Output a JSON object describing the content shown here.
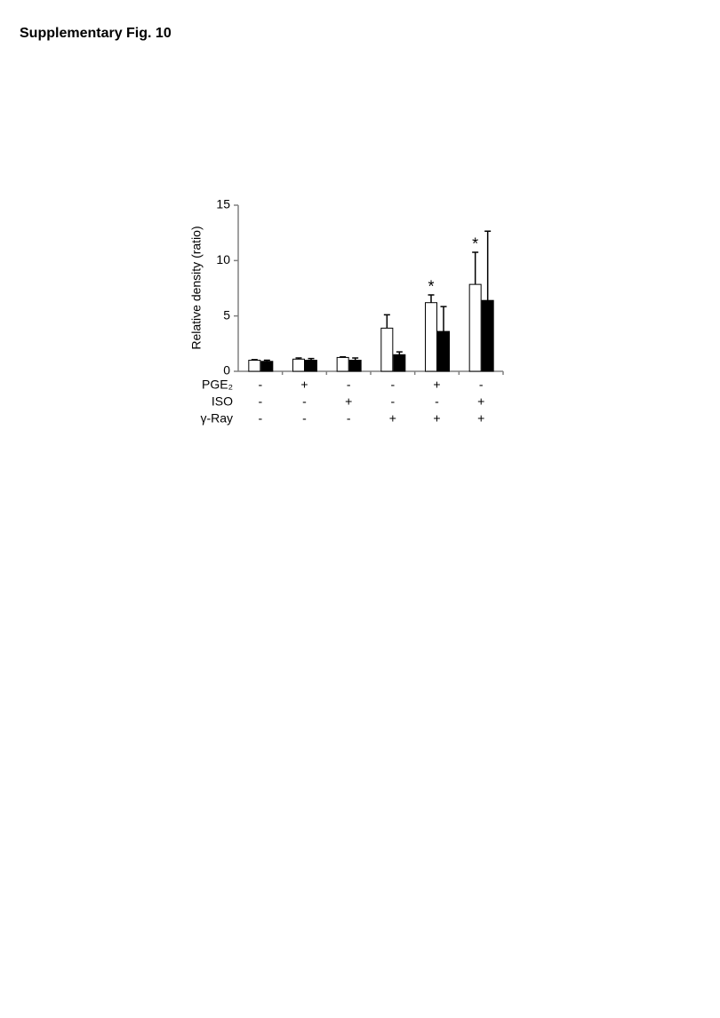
{
  "figure_label": "Supplementary Fig. 10",
  "chart_data": {
    "type": "bar",
    "y_label": "Relative density (ratio)",
    "ylim": [
      0,
      15
    ],
    "yticks": [
      0,
      5,
      10,
      15
    ],
    "axis_color": "#808080",
    "conditions": [
      {
        "label": "PGE₂",
        "values": [
          "-",
          "+",
          "-",
          "-",
          "+",
          "-"
        ]
      },
      {
        "label": "ISO",
        "values": [
          "-",
          "-",
          "+",
          "-",
          "-",
          "+"
        ]
      },
      {
        "label": "γ-Ray",
        "values": [
          "-",
          "-",
          "-",
          "+",
          "+",
          "+"
        ]
      }
    ],
    "series": [
      {
        "color": "#ffffff",
        "values": [
          1.0,
          1.1,
          1.25,
          3.9,
          6.2,
          7.85
        ],
        "errors": [
          0.05,
          0.1,
          0.05,
          1.2,
          0.7,
          2.9
        ],
        "annotations": [
          null,
          null,
          null,
          null,
          "*",
          "*"
        ]
      },
      {
        "color": "#000000",
        "values": [
          0.9,
          1.0,
          1.0,
          1.5,
          3.6,
          6.4
        ],
        "errors": [
          0.1,
          0.15,
          0.2,
          0.25,
          2.25,
          6.25
        ]
      }
    ]
  }
}
